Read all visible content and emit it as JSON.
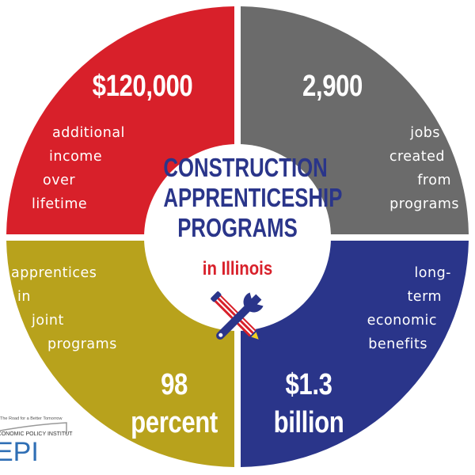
{
  "title_lines": [
    "CONSTRUCTION",
    "APPRENTICESHIP",
    "PROGRAMS"
  ],
  "subtitle": "in Illinois",
  "quadrants": {
    "top_left": {
      "value": "$120,000",
      "lines": [
        "additional",
        "income",
        "over",
        "lifetime"
      ],
      "color": "#d8202a"
    },
    "top_right": {
      "value": "2,900",
      "lines": [
        "jobs",
        "created",
        "from",
        "programs"
      ],
      "color": "#6b6b6b"
    },
    "bottom_left": {
      "value_lines": [
        "98",
        "percent"
      ],
      "lines": [
        "apprentices",
        "in",
        "joint",
        "programs"
      ],
      "color": "#b8a21c"
    },
    "bottom_right": {
      "value_lines": [
        "$1.3",
        "billion"
      ],
      "lines": [
        "long-",
        "term",
        "economic",
        "benefits"
      ],
      "color": "#2a358a"
    }
  },
  "icon": "wrench-pencil-icon",
  "logo": {
    "tagline": "The Road for a Better Tomorrow",
    "name": "ECONOMIC POLICY INSTITUTE",
    "mark": "EPI"
  }
}
